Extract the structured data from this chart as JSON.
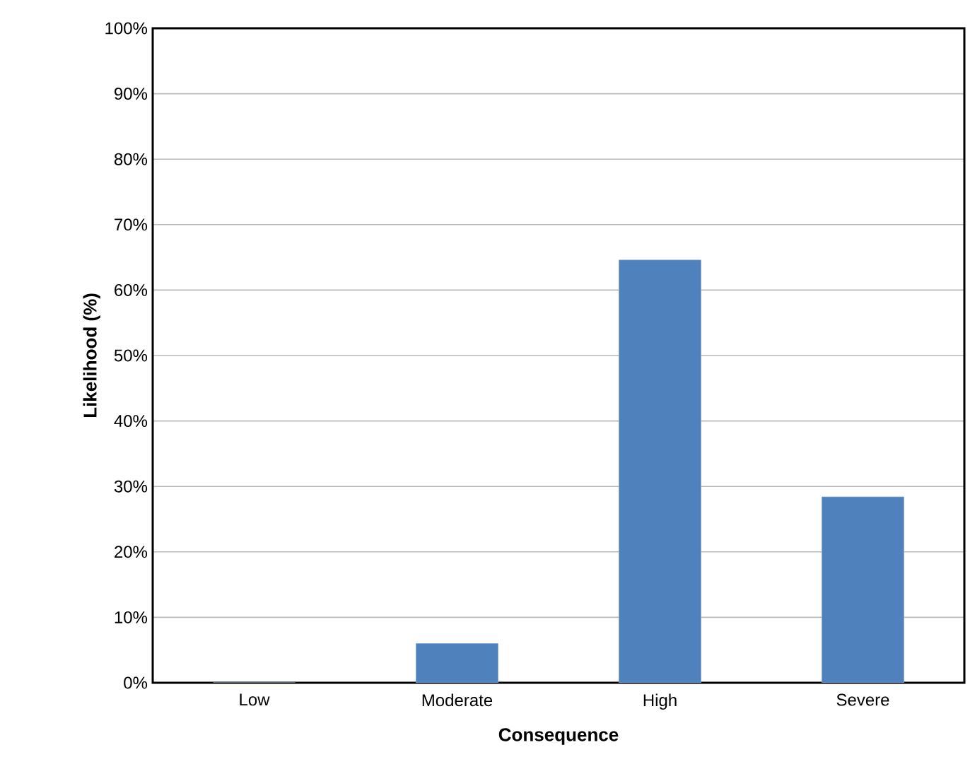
{
  "chart_data": {
    "type": "bar",
    "xlabel": "Consequence",
    "ylabel": "Likelihood (%)",
    "categories": [
      "Low",
      "Moderate",
      "High",
      "Severe"
    ],
    "values": [
      0,
      6,
      64.6,
      28.4
    ],
    "color": "#4f81bd",
    "ylim": [
      0,
      100
    ],
    "yticks": [
      {
        "value": 0,
        "label": "0%"
      },
      {
        "value": 10,
        "label": "10%"
      },
      {
        "value": 20,
        "label": "20%"
      },
      {
        "value": 30,
        "label": "30%"
      },
      {
        "value": 40,
        "label": "40%"
      },
      {
        "value": 50,
        "label": "50%"
      },
      {
        "value": 60,
        "label": "60%"
      },
      {
        "value": 70,
        "label": "70%"
      },
      {
        "value": 80,
        "label": "80%"
      },
      {
        "value": 90,
        "label": "90%"
      },
      {
        "value": 100,
        "label": "100%"
      }
    ],
    "grid": "y"
  }
}
